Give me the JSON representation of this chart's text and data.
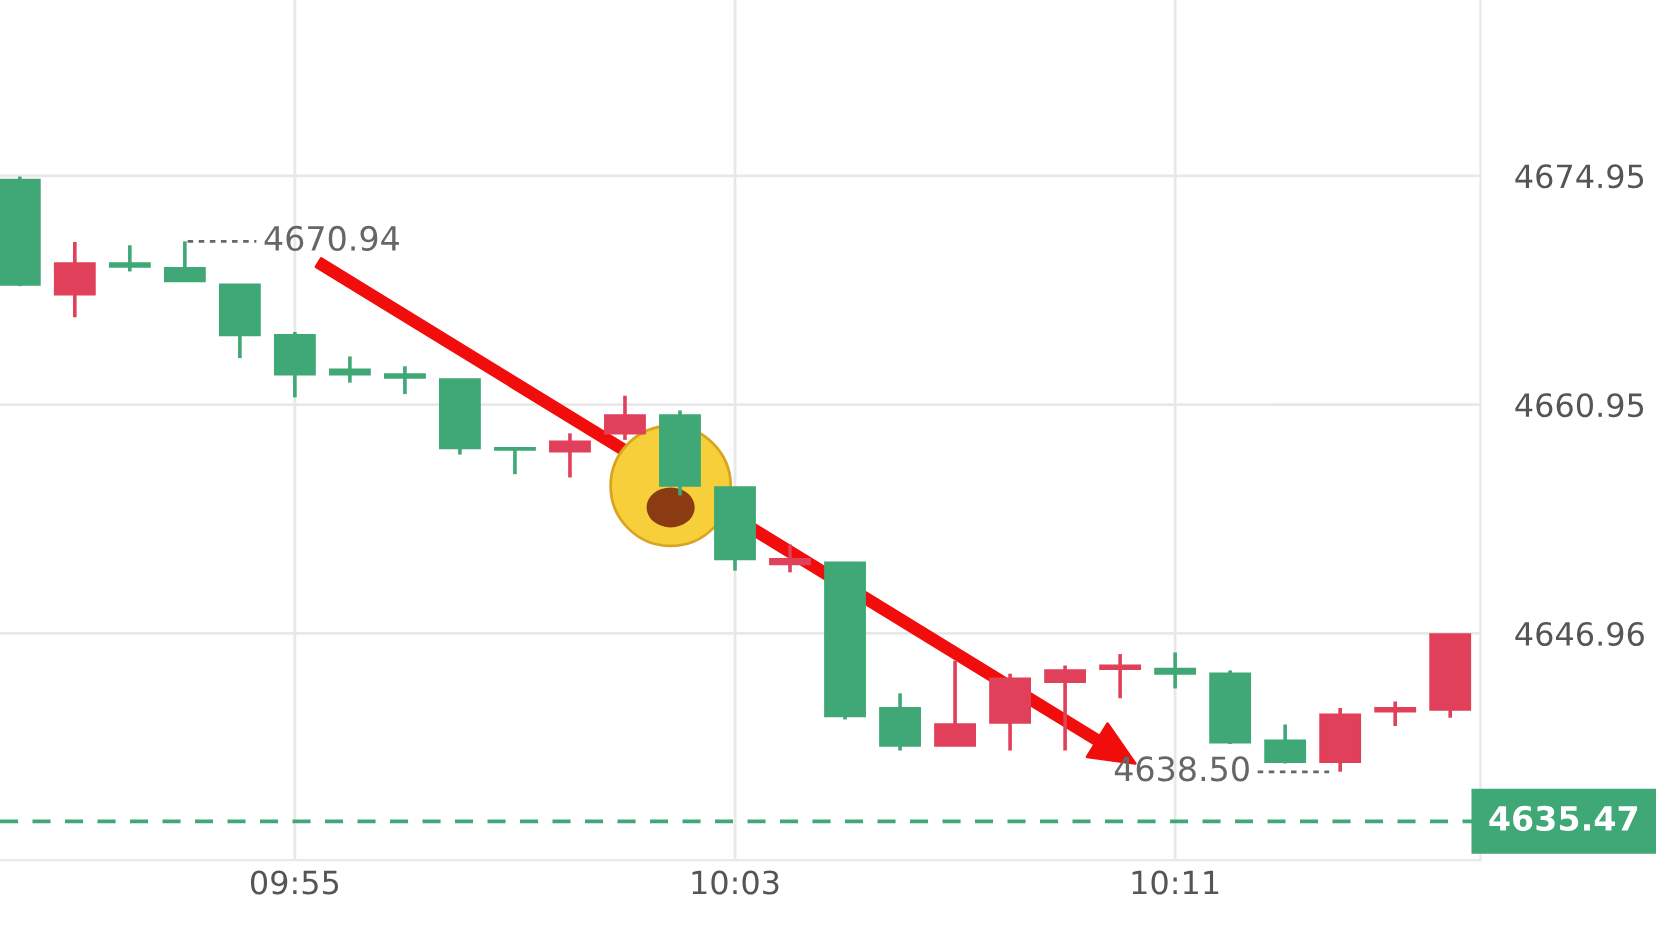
{
  "chart_data": {
    "type": "candlestick",
    "categories": [
      null,
      null,
      null,
      null,
      null,
      "09:55",
      null,
      null,
      null,
      null,
      null,
      null,
      null,
      "10:03",
      null,
      null,
      null,
      null,
      null,
      null,
      null,
      "10:11",
      null,
      null,
      null,
      null,
      null
    ],
    "ohlc": [
      [
        4674.7,
        4674.9,
        4668.2,
        4668.3
      ],
      [
        4667.7,
        4670.9,
        4666.3,
        4669.6
      ],
      [
        4669.6,
        4670.7,
        4669.1,
        4669.4
      ],
      [
        4669.3,
        4670.94,
        4668.5,
        4668.5
      ],
      [
        4668.3,
        4668.3,
        4663.8,
        4665.2
      ],
      [
        4665.2,
        4665.4,
        4661.4,
        4662.8
      ],
      [
        4663.1,
        4663.9,
        4662.3,
        4662.8
      ],
      [
        4662.8,
        4663.3,
        4661.6,
        4662.6
      ],
      [
        4662.5,
        4662.5,
        4657.9,
        4658.3
      ],
      [
        4658.3,
        4658.3,
        4656.7,
        4658.2
      ],
      [
        4658.1,
        4659.2,
        4656.5,
        4658.7
      ],
      [
        4659.2,
        4661.5,
        4658.8,
        4660.3
      ],
      [
        4660.3,
        4660.6,
        4655.4,
        4656.0
      ],
      [
        4655.9,
        4655.9,
        4650.8,
        4651.5
      ],
      [
        4651.2,
        4652.4,
        4650.7,
        4651.5
      ],
      [
        4651.3,
        4651.3,
        4641.7,
        4641.9
      ],
      [
        4642.4,
        4643.3,
        4639.8,
        4640.1
      ],
      [
        4640.1,
        4645.3,
        4640.1,
        4641.4
      ],
      [
        4641.5,
        4644.5,
        4639.8,
        4644.2
      ],
      [
        4644.0,
        4645.0,
        4639.8,
        4644.7
      ],
      [
        4644.8,
        4645.7,
        4643.0,
        4645.0
      ],
      [
        4644.8,
        4645.8,
        4643.6,
        4644.5
      ],
      [
        4644.5,
        4644.7,
        4640.2,
        4640.3
      ],
      [
        4640.4,
        4641.4,
        4639.0,
        4639.1
      ],
      [
        4639.1,
        4642.4,
        4638.5,
        4642.0
      ],
      [
        4642.2,
        4642.8,
        4641.3,
        4642.4
      ],
      [
        4642.3,
        4646.9,
        4641.8,
        4646.9
      ]
    ],
    "colors": [
      "#3fa876",
      "#e0405a",
      "#3fa876",
      "#3fa876",
      "#3fa876",
      "#3fa876",
      "#3fa876",
      "#3fa876",
      "#3fa876",
      "#3fa876",
      "#e0405a",
      "#e0405a",
      "#3fa876",
      "#3fa876",
      "#e0405a",
      "#3fa876",
      "#3fa876",
      "#e0405a",
      "#e0405a",
      "#e0405a",
      "#e0405a",
      "#3fa876",
      "#3fa876",
      "#3fa876",
      "#e0405a",
      "#e0405a",
      "#e0405a"
    ],
    "ylim": [
      4633.1,
      4685.7
    ],
    "yticks": [
      4674.95,
      4660.95,
      4646.96
    ],
    "grid": true,
    "ref_lines": [
      {
        "axis": "y",
        "value": 4635.47,
        "label": "4635.47",
        "color": "#3fa876",
        "line_style": "dashed"
      }
    ],
    "annotations": [
      "4670.94",
      "4638.50"
    ]
  }
}
